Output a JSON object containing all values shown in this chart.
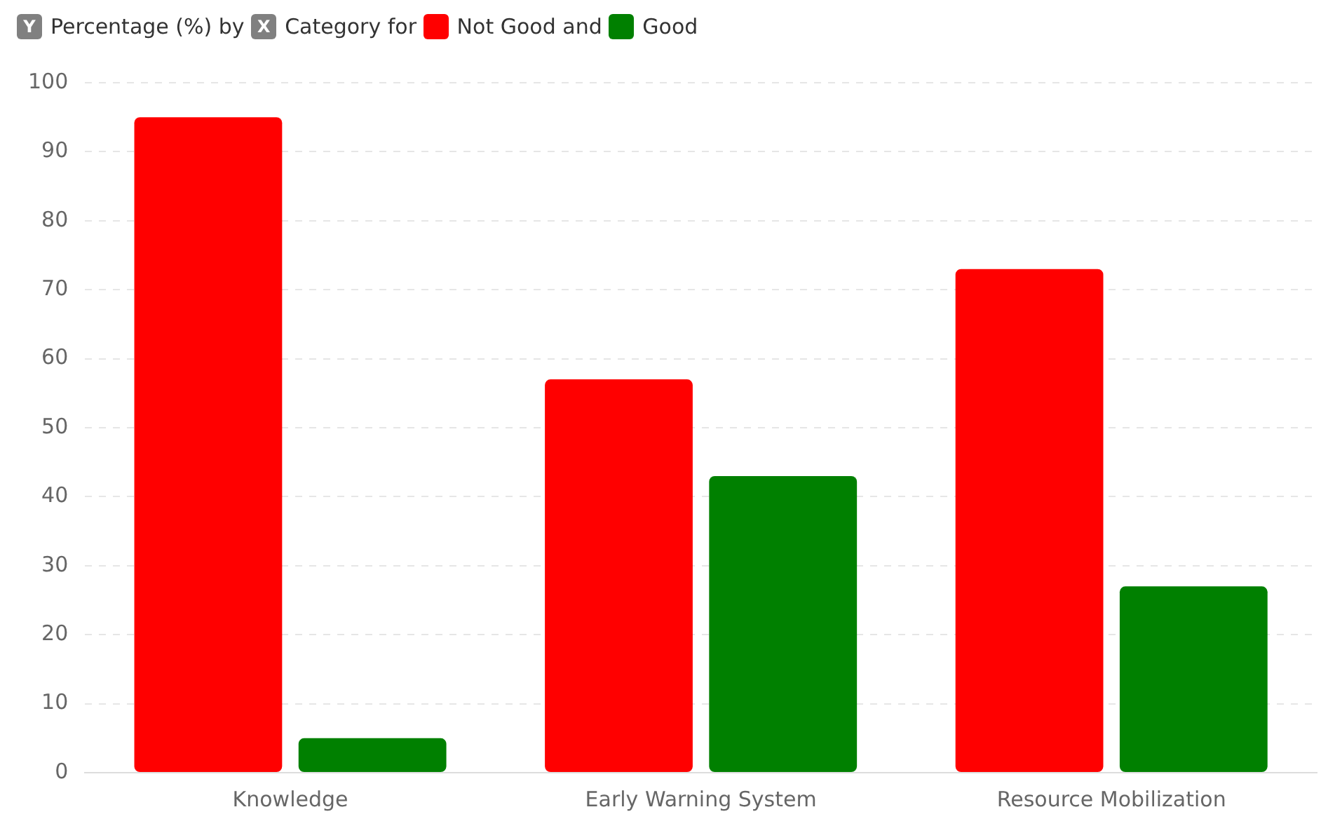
{
  "chart_data": {
    "type": "bar",
    "ylabel": "Percentage (%)",
    "xlabel": "Category",
    "annotations": [
      "Y",
      "by",
      "X",
      "for",
      "and"
    ],
    "categories": [
      "Knowledge",
      "Early Warning System",
      "Resource Mobilization"
    ],
    "series": [
      {
        "name": "Not Good",
        "color": "#ff0000",
        "values": [
          95,
          57,
          73
        ]
      },
      {
        "name": "Good",
        "color": "#008000",
        "values": [
          5,
          43,
          27
        ]
      }
    ],
    "ylim": [
      0,
      100
    ],
    "yticks": [
      0,
      10,
      20,
      30,
      40,
      50,
      60,
      70,
      80,
      90,
      100
    ],
    "grid": "y",
    "legend": "top left"
  }
}
